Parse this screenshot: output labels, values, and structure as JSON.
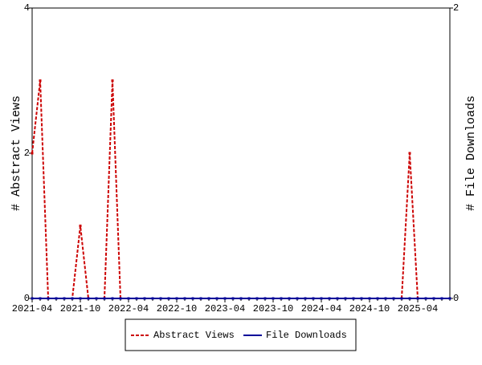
{
  "chart_data": {
    "type": "line",
    "x": [
      "2021-04",
      null,
      null,
      null,
      null,
      null,
      "2021-10",
      null,
      null,
      null,
      null,
      null,
      "2022-04",
      null,
      null,
      null,
      null,
      null,
      "2022-10",
      null,
      null,
      null,
      null,
      null,
      "2023-04",
      null,
      null,
      null,
      null,
      null,
      "2023-10",
      null,
      null,
      null,
      null,
      null,
      "2024-04",
      null,
      null,
      null,
      null,
      null,
      "2024-10",
      null,
      null,
      null,
      null,
      null,
      "2025-04",
      null,
      null,
      null,
      null
    ],
    "ylabel": "# Abstract Views",
    "y2label": "# File Downloads",
    "ylim": [
      0,
      4
    ],
    "yticks": [
      0,
      2,
      4
    ],
    "y2lim": [
      0,
      2
    ],
    "y2ticks": [
      0,
      2
    ],
    "series": [
      {
        "name": "Abstract Views",
        "color": "#cc0000",
        "dashed": true,
        "values": [
          2,
          3,
          0,
          0,
          0,
          0,
          1,
          0,
          0,
          0,
          3,
          0,
          0,
          0,
          0,
          0,
          0,
          0,
          0,
          0,
          0,
          0,
          0,
          0,
          0,
          0,
          0,
          0,
          0,
          0,
          0,
          0,
          0,
          0,
          0,
          0,
          0,
          0,
          0,
          0,
          0,
          0,
          0,
          0,
          0,
          0,
          0,
          2,
          0,
          0,
          0,
          0,
          0
        ]
      },
      {
        "name": "File Downloads",
        "color": "#000099",
        "dashed": false,
        "axis": "y2",
        "values": [
          0,
          0,
          0,
          0,
          0,
          0,
          0,
          0,
          0,
          0,
          0,
          0,
          0,
          0,
          0,
          0,
          0,
          0,
          0,
          0,
          0,
          0,
          0,
          0,
          0,
          0,
          0,
          0,
          0,
          0,
          0,
          0,
          0,
          0,
          0,
          0,
          0,
          0,
          0,
          0,
          0,
          0,
          0,
          0,
          0,
          0,
          0,
          0,
          0,
          0,
          0,
          0,
          0
        ]
      }
    ]
  }
}
